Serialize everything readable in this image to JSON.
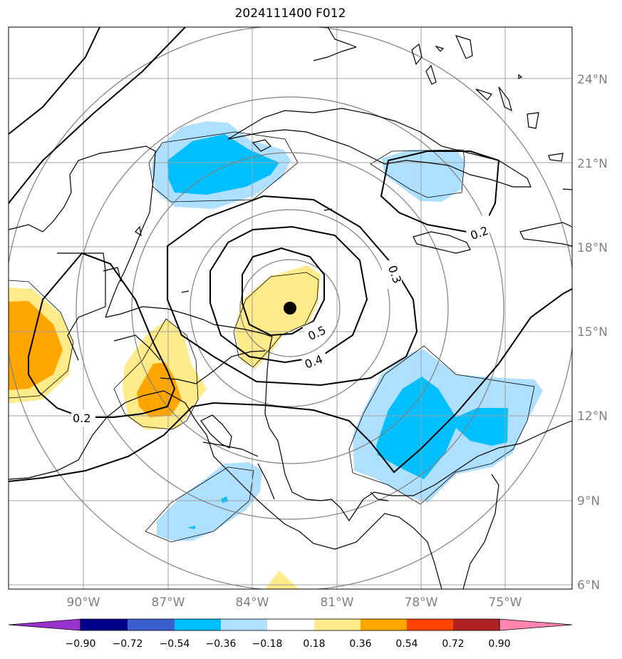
{
  "title": "2024111400 F012",
  "map": {
    "lon_range": [
      -92.6,
      -72.4
    ],
    "lat_range": [
      5.8,
      25.8
    ],
    "center_marker": {
      "lon": -82.4,
      "lat": 15.8
    },
    "lat_labels": [
      "24°N",
      "21°N",
      "18°N",
      "15°N",
      "12°N",
      "9°N",
      "6°N"
    ],
    "lat_values": [
      24,
      21,
      18,
      15,
      12,
      9,
      6
    ],
    "lon_labels": [
      "90°W",
      "87°W",
      "84°W",
      "81°W",
      "78°W",
      "75°W"
    ],
    "lon_values": [
      -90,
      -87,
      -84,
      -81,
      -78,
      -75
    ],
    "contour_labels": [
      "0.2",
      "0.3",
      "0.5",
      "0.4",
      "0.2"
    ],
    "colors": {
      "coast": "#000000",
      "grid": "#a0a0a0",
      "range_ring": "#808080",
      "contour": "#000000"
    }
  },
  "colorbar": {
    "labels": [
      "−0.90",
      "−0.72",
      "−0.54",
      "−0.36",
      "−0.18",
      "0.18",
      "0.36",
      "0.54",
      "0.72",
      "0.90"
    ],
    "colors": [
      "#9932cc",
      "#00008b",
      "#3a5fcd",
      "#00bfff",
      "#b0e0ff",
      "#ffffff",
      "#ffeb8a",
      "#ffa500",
      "#ff4500",
      "#b22222",
      "#ff85b0"
    ]
  }
}
